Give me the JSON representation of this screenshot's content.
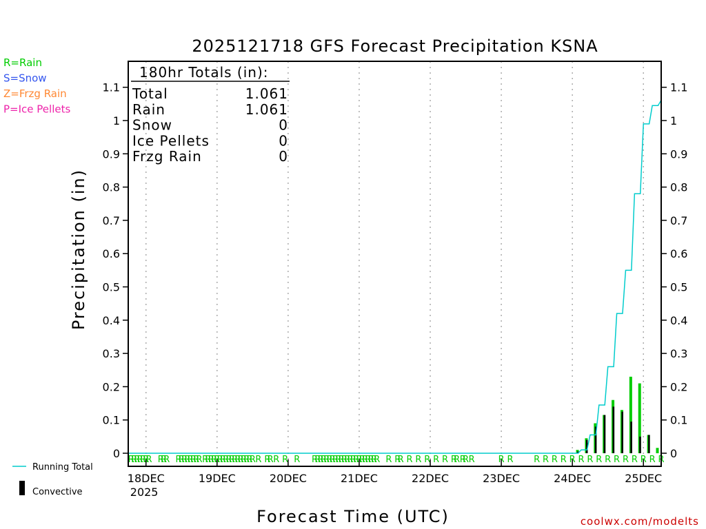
{
  "chart_data": {
    "type": "bar",
    "title": "2025121718 GFS Forecast Precipitation KSNA",
    "xlabel": "Forecast Time (UTC)",
    "ylabel": "Precipitation (in)",
    "ylim": [
      0,
      1.2
    ],
    "yticks": [
      0,
      0.1,
      0.2,
      0.3,
      0.4,
      0.5,
      0.6,
      0.7,
      0.8,
      0.9,
      1,
      1.1
    ],
    "ytick_labels": [
      "0",
      "0.1",
      "0.2",
      "0.3",
      "0.4",
      "0.5",
      "0.6",
      "0.7",
      "0.8",
      "0.9",
      "1",
      "1.1"
    ],
    "xlim_hours": [
      0,
      180
    ],
    "xticks": [
      {
        "hour": 6,
        "label": "18DEC",
        "sub": "2025"
      },
      {
        "hour": 30,
        "label": "19DEC",
        "sub": ""
      },
      {
        "hour": 54,
        "label": "20DEC",
        "sub": ""
      },
      {
        "hour": 78,
        "label": "21DEC",
        "sub": ""
      },
      {
        "hour": 102,
        "label": "22DEC",
        "sub": ""
      },
      {
        "hour": 126,
        "label": "23DEC",
        "sub": ""
      },
      {
        "hour": 150,
        "label": "24DEC",
        "sub": ""
      },
      {
        "hour": 174,
        "label": "25DEC",
        "sub": ""
      }
    ],
    "grid": "vertical-dotted",
    "legend": [
      {
        "text": "R=Rain",
        "color": "#00cc00"
      },
      {
        "text": "S=Snow",
        "color": "#3355ee"
      },
      {
        "text": "Z=Frzg Rain",
        "color": "#ff8833"
      },
      {
        "text": "P=Ice Pellets",
        "color": "#ee22aa"
      }
    ],
    "series": [
      {
        "name": "Running Total",
        "type": "step",
        "color": "#00cccc",
        "points": [
          [
            0,
            0
          ],
          [
            150,
            0
          ],
          [
            153,
            0.01
          ],
          [
            156,
            0.055
          ],
          [
            159,
            0.145
          ],
          [
            162,
            0.26
          ],
          [
            165,
            0.42
          ],
          [
            168,
            0.55
          ],
          [
            171,
            0.78
          ],
          [
            174,
            0.99
          ],
          [
            177,
            1.045
          ],
          [
            180,
            1.061
          ]
        ]
      },
      {
        "name": "Rain",
        "type": "bar",
        "color": "#00cc00",
        "hours": [
          153,
          156,
          159,
          162,
          165,
          168,
          171,
          174,
          177,
          180
        ],
        "values": [
          0.01,
          0.045,
          0.09,
          0.115,
          0.16,
          0.13,
          0.23,
          0.21,
          0.055,
          0.016
        ]
      },
      {
        "name": "Convective",
        "type": "bar",
        "color": "#000000",
        "hours": [
          153,
          156,
          159,
          162,
          165,
          168,
          171,
          174,
          177,
          180
        ],
        "values": [
          0.005,
          0.04,
          0.08,
          0.115,
          0.14,
          0.125,
          0.095,
          0.05,
          0.055,
          0.0
        ]
      }
    ],
    "ptype_marker": {
      "symbol": "R",
      "color": "#00cc00"
    },
    "ptype_hours": [
      1,
      2,
      3,
      4,
      5,
      6,
      7,
      11,
      12,
      13,
      17,
      18,
      19,
      20,
      21,
      22,
      23,
      24,
      26,
      27,
      28,
      29,
      30,
      31,
      32,
      33,
      34,
      35,
      36,
      37,
      38,
      39,
      40,
      41,
      42,
      44,
      47,
      48,
      50,
      53,
      57,
      63,
      64,
      65,
      66,
      67,
      68,
      69,
      70,
      71,
      72,
      73,
      74,
      75,
      76,
      77,
      78,
      79,
      80,
      81,
      82,
      83,
      84,
      88,
      91,
      92,
      95,
      98,
      101,
      104,
      107,
      110,
      111,
      113,
      114,
      116,
      126,
      129,
      138,
      141,
      144,
      147,
      150,
      153,
      156,
      159,
      162,
      165,
      168,
      171,
      174,
      177,
      180
    ],
    "totals": {
      "header": "180hr Totals (in):",
      "rows": [
        {
          "label": "Total",
          "value": "1.061"
        },
        {
          "label": "Rain",
          "value": "1.061"
        },
        {
          "label": "Snow",
          "value": "0"
        },
        {
          "label": "Ice Pellets",
          "value": "0"
        },
        {
          "label": "Frzg Rain",
          "value": "0"
        }
      ]
    },
    "key": [
      {
        "label": "Running Total",
        "color": "#00cccc",
        "kind": "line"
      },
      {
        "label": "Convective",
        "color": "#000000",
        "kind": "bar"
      }
    ],
    "credit": "coolwx.com/modelts"
  }
}
